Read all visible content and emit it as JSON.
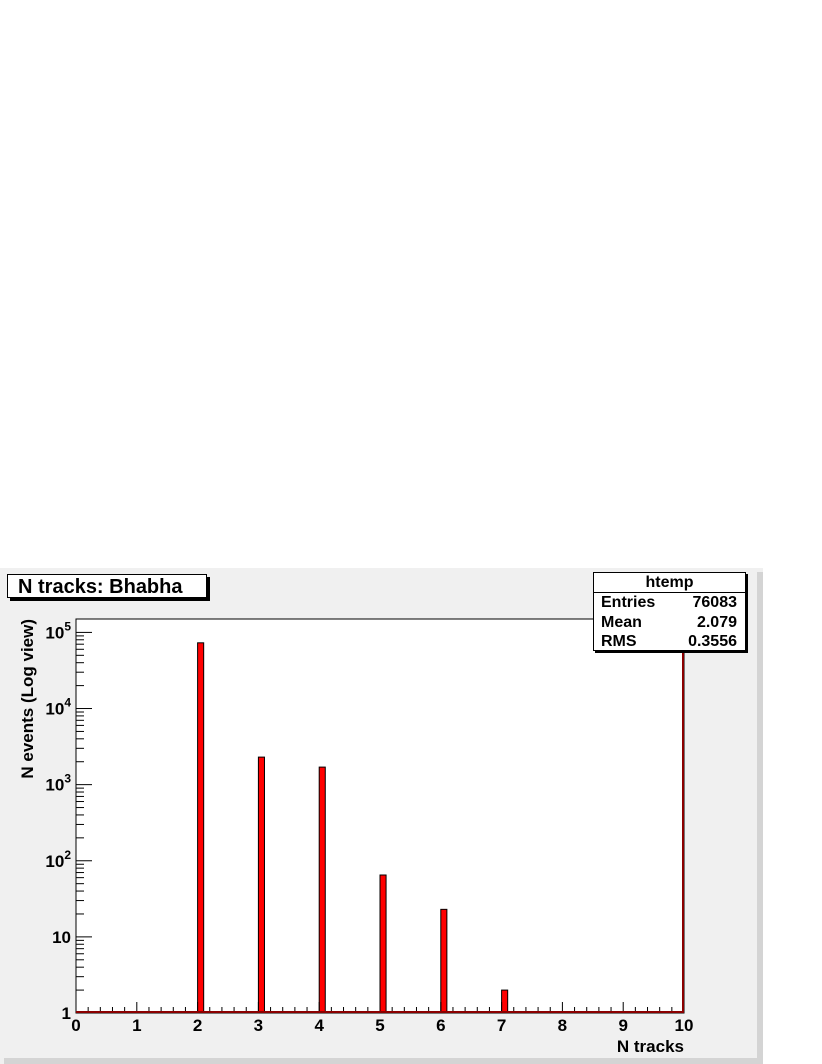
{
  "title": "N tracks: Bhabha",
  "stats": {
    "name": "htemp",
    "rows": [
      {
        "label": "Entries",
        "value": "76083"
      },
      {
        "label": "Mean",
        "value": "2.079"
      },
      {
        "label": "RMS",
        "value": "0.3556"
      }
    ]
  },
  "colors": {
    "bar_fill": "#ff0000",
    "bar_edge": "#000000",
    "frame_bg": "#f0f0f0",
    "plot_bg": "#ffffff"
  },
  "chart_data": {
    "type": "bar",
    "title": "N tracks: Bhabha",
    "xlabel": "N tracks",
    "ylabel": "N events (Log view)",
    "log_y": true,
    "xlim": [
      0,
      10
    ],
    "ylim": [
      1,
      150000
    ],
    "grid": false,
    "x_tick_labels": [
      "0",
      "1",
      "2",
      "3",
      "4",
      "5",
      "6",
      "7",
      "8",
      "9",
      "10"
    ],
    "y_tick_labels": [
      {
        "value": 1,
        "base": "1",
        "exp": ""
      },
      {
        "value": 10,
        "base": "10",
        "exp": ""
      },
      {
        "value": 100,
        "base": "10",
        "exp": "2"
      },
      {
        "value": 1000,
        "base": "10",
        "exp": "3"
      },
      {
        "value": 10000,
        "base": "10",
        "exp": "4"
      },
      {
        "value": 100000,
        "base": "10",
        "exp": "5"
      }
    ],
    "bars": [
      {
        "x": 2,
        "value": 73000
      },
      {
        "x": 3,
        "value": 2300
      },
      {
        "x": 4,
        "value": 1700
      },
      {
        "x": 5,
        "value": 65
      },
      {
        "x": 6,
        "value": 23
      },
      {
        "x": 7,
        "value": 2
      }
    ],
    "bin_width": 0.1
  }
}
